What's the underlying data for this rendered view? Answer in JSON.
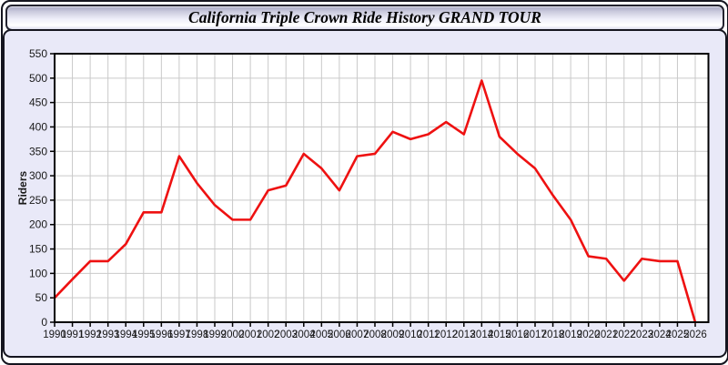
{
  "window": {
    "title": "California Triple Crown Ride History GRAND TOUR"
  },
  "chart_data": {
    "type": "line",
    "title": "California Triple Crown Ride History GRAND TOUR",
    "xlabel": "",
    "ylabel": "Riders",
    "x": [
      1990,
      1991,
      1992,
      1993,
      1994,
      1995,
      1996,
      1997,
      1998,
      1999,
      2000,
      2001,
      2002,
      2003,
      2004,
      2005,
      2006,
      2007,
      2008,
      2009,
      2010,
      2011,
      2012,
      2013,
      2014,
      2015,
      2016,
      2017,
      2018,
      2019,
      2020,
      2021,
      2022,
      2023,
      2024,
      2025,
      2026
    ],
    "series": [
      {
        "name": "Riders",
        "color": "#ee1111",
        "values": [
          50,
          88,
          125,
          125,
          160,
          225,
          225,
          340,
          285,
          240,
          210,
          210,
          270,
          280,
          345,
          315,
          270,
          340,
          345,
          390,
          375,
          385,
          410,
          385,
          495,
          380,
          345,
          315,
          260,
          210,
          135,
          130,
          85,
          130,
          125,
          125,
          0
        ]
      }
    ],
    "ylim": [
      0,
      550
    ],
    "ytick_step": 50,
    "xtick_every": 1,
    "grid": true,
    "legend_position": "none"
  },
  "colors": {
    "panel_bg": "#e9e9f8",
    "plot_bg": "#ffffff",
    "grid": "#c9c9c9",
    "axis_border": "#000000",
    "tick_text": "#1a1a1a",
    "line": "#ee1111",
    "titlebar_border": "#23232f",
    "frame_border": "#14141e"
  }
}
